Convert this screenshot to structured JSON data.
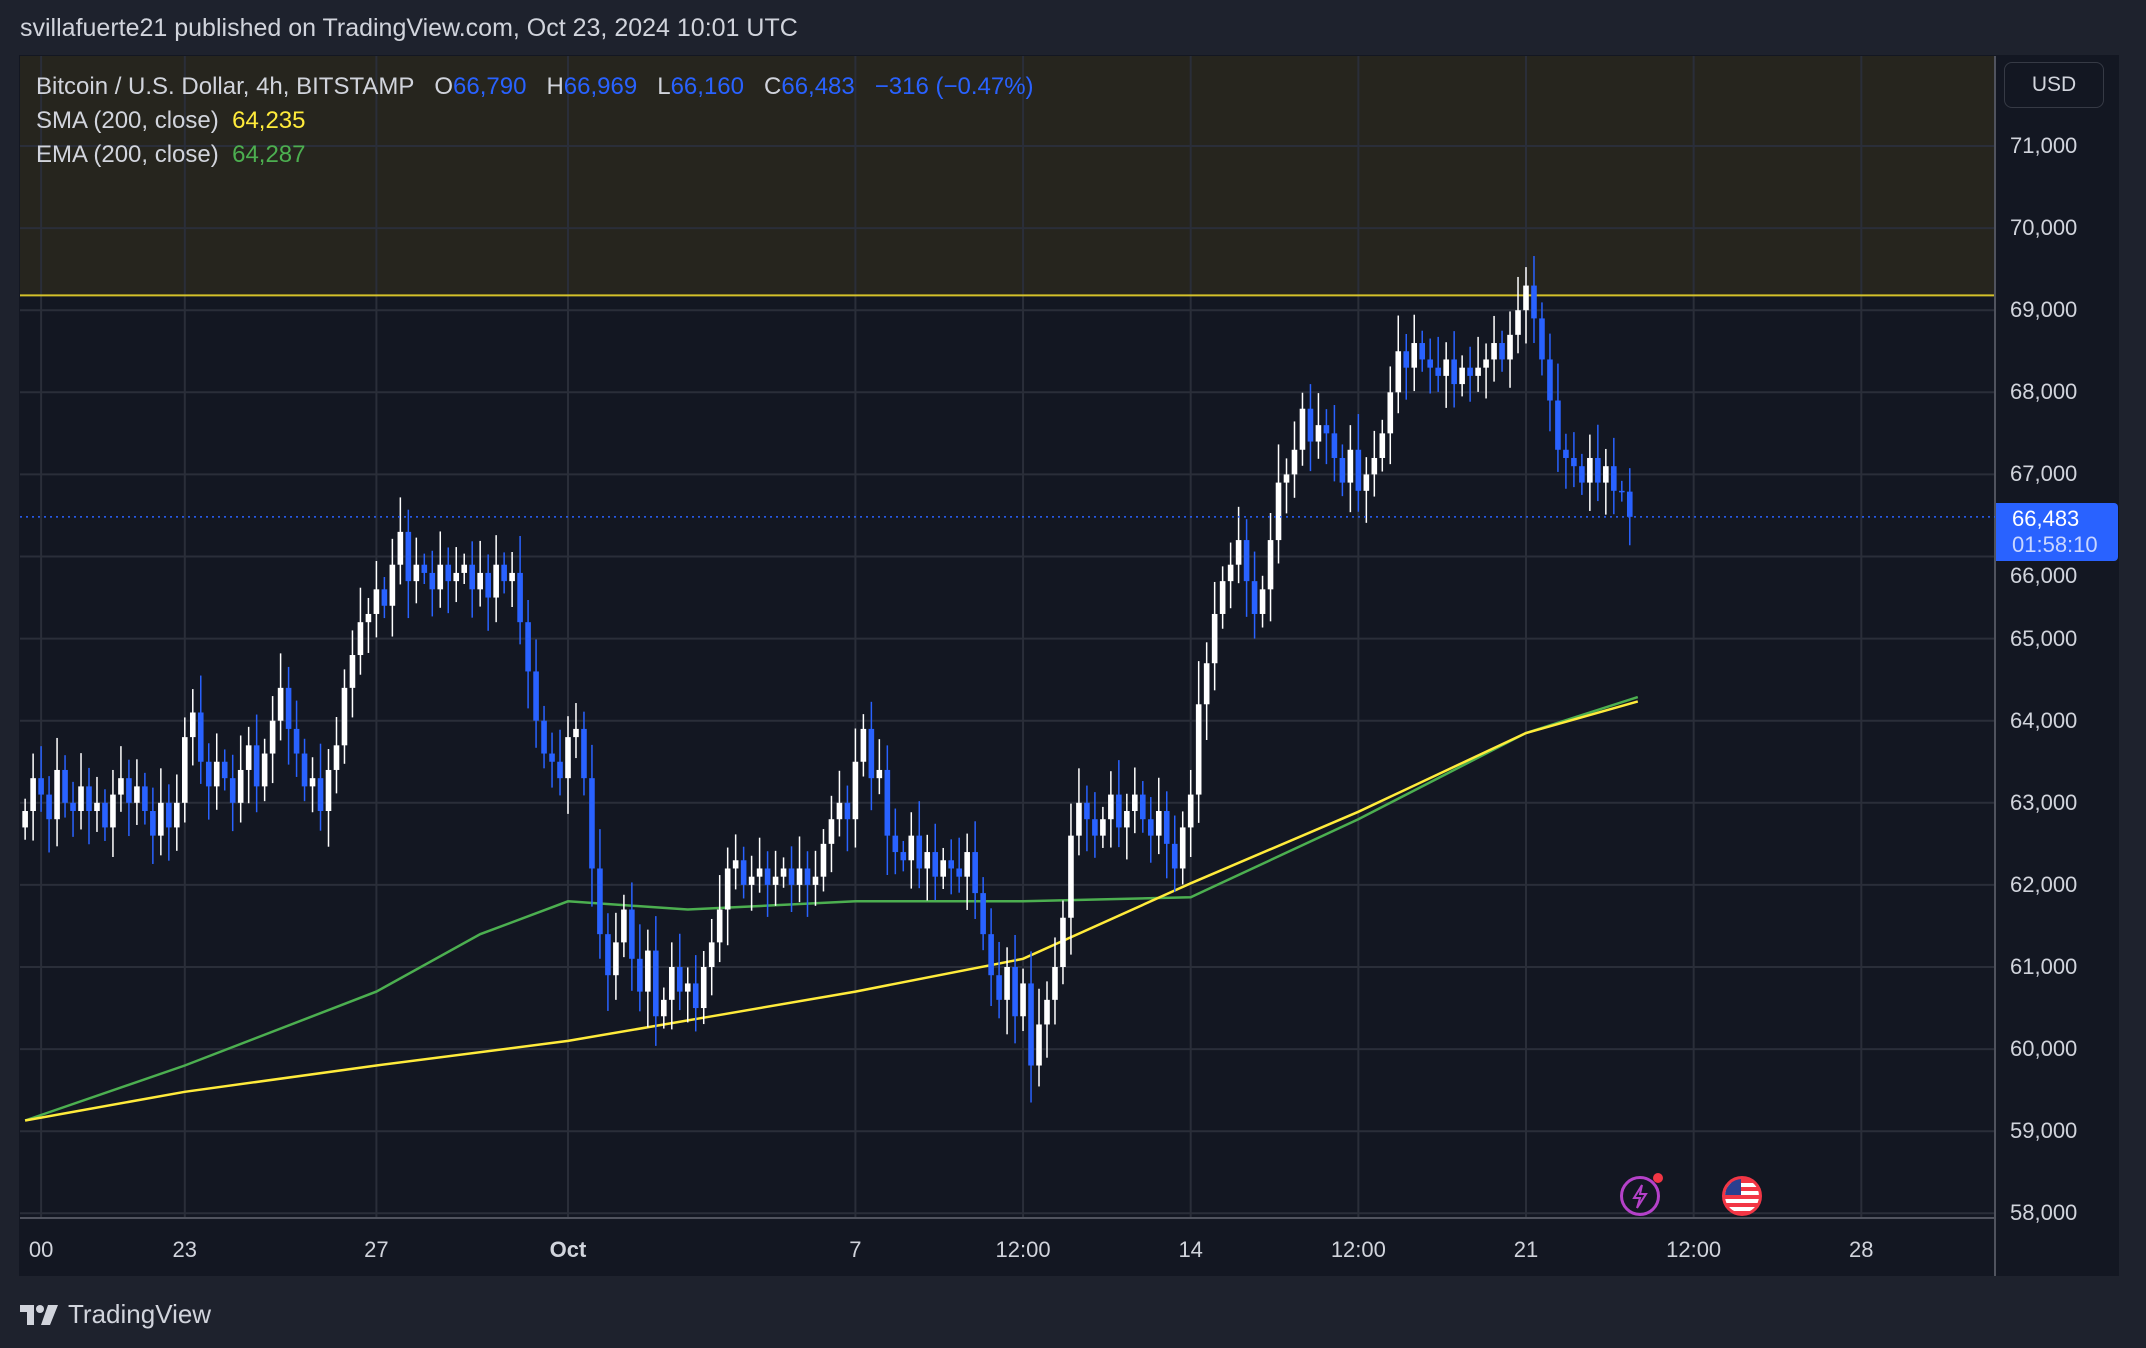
{
  "header": {
    "published_line": "svillafuerte21 published on TradingView.com, Oct 23, 2024 10:01 UTC"
  },
  "legend": {
    "symbol": "Bitcoin / U.S. Dollar, 4h, BITSTAMP",
    "o_label": "O",
    "o_value": "66,790",
    "h_label": "H",
    "h_value": "66,969",
    "l_label": "L",
    "l_value": "66,160",
    "c_label": "C",
    "c_value": "66,483",
    "change": "−316 (−0.47%)",
    "sma_label": "SMA (200, close)",
    "sma_value": "64,235",
    "ema_label": "EMA (200, close)",
    "ema_value": "64,287"
  },
  "price_axis": {
    "currency": "USD",
    "ticks": [
      "71,000",
      "70,000",
      "69,000",
      "68,000",
      "67,000",
      "66,000",
      "65,000",
      "64,000",
      "63,000",
      "62,000",
      "61,000",
      "60,000",
      "59,000",
      "58,000"
    ],
    "last_price": "66,483",
    "countdown": "01:58:10"
  },
  "time_axis": {
    "ticks": [
      {
        "label": "00",
        "t": "2024-09-20 00:00"
      },
      {
        "label": "23",
        "t": "2024-09-23 00:00"
      },
      {
        "label": "27",
        "t": "2024-09-27 00:00"
      },
      {
        "label": "Oct",
        "t": "2024-10-01 00:00"
      },
      {
        "label": "7",
        "t": "2024-10-07 00:00"
      },
      {
        "label": "12:00",
        "t": "2024-10-10 12:00"
      },
      {
        "label": "14",
        "t": "2024-10-14 00:00"
      },
      {
        "label": "12:00",
        "t": "2024-10-17 12:00"
      },
      {
        "label": "21",
        "t": "2024-10-21 00:00"
      },
      {
        "label": "12:00",
        "t": "2024-10-24 12:00"
      },
      {
        "label": "28",
        "t": "2024-10-28 00:00"
      }
    ]
  },
  "footer": {
    "brand": "TradingView"
  },
  "icons": {
    "events": "lightning-icon",
    "economic": "us-flag-icon"
  },
  "colors": {
    "up": "#ffffff",
    "down": "#2962ff",
    "sma": "#ffeb3b",
    "ema": "#4caf50",
    "resistance": "#d4c12a",
    "background": "#131722"
  },
  "chart_data": {
    "type": "candlestick",
    "interval": "4h",
    "start": "2024-09-19 16:00",
    "first_open": 62700,
    "close": [
      62900,
      63300,
      63100,
      62800,
      63400,
      63000,
      62900,
      63200,
      62900,
      63000,
      62700,
      63100,
      63300,
      63000,
      63200,
      62900,
      62600,
      63000,
      62700,
      63000,
      63800,
      64100,
      63500,
      63200,
      63500,
      63300,
      63000,
      63400,
      63700,
      63200,
      63600,
      64000,
      64400,
      63900,
      63600,
      63200,
      63300,
      62900,
      63400,
      63700,
      64400,
      64800,
      65200,
      65300,
      65600,
      65400,
      65900,
      66300,
      65700,
      65900,
      65800,
      65600,
      65900,
      65700,
      65800,
      65900,
      65600,
      65800,
      65500,
      65900,
      65700,
      65800,
      65200,
      64600,
      64000,
      63600,
      63500,
      63300,
      63800,
      63900,
      63300,
      62200,
      61400,
      60900,
      61300,
      61700,
      61100,
      60700,
      61200,
      60400,
      60600,
      61000,
      60700,
      60800,
      60500,
      61000,
      61300,
      61700,
      62200,
      62300,
      62000,
      62100,
      62200,
      62000,
      62100,
      62200,
      62000,
      62200,
      62000,
      62100,
      62500,
      62800,
      63000,
      62800,
      63500,
      63900,
      63300,
      63400,
      62600,
      62400,
      62300,
      62600,
      62200,
      62400,
      62100,
      62300,
      62200,
      62100,
      62400,
      61900,
      61400,
      60900,
      60600,
      61000,
      60400,
      60800,
      59800,
      60300,
      60600,
      61000,
      61600,
      62600,
      63000,
      62800,
      62600,
      62800,
      63100,
      62700,
      62900,
      63100,
      62800,
      62600,
      62900,
      62500,
      62200,
      62700,
      63100,
      64200,
      64700,
      65300,
      65700,
      65900,
      66200,
      65700,
      65300,
      65600,
      66200,
      66900,
      67000,
      67300,
      67800,
      67400,
      67600,
      67500,
      67200,
      66900,
      67300,
      66800,
      67000,
      67200,
      67500,
      68000,
      68500,
      68300,
      68600,
      68400,
      68300,
      68200,
      68400,
      68100,
      68300,
      68200,
      68300,
      68400,
      68600,
      68400,
      68700,
      69000,
      69300,
      68900,
      68400,
      67900,
      67300,
      67200,
      67100,
      66900,
      67200,
      66900,
      67100,
      66800,
      66790,
      66483
    ],
    "sma": [
      [
        "2024-09-19 16:00",
        59130
      ],
      [
        "2024-09-23 00:00",
        59480
      ],
      [
        "2024-09-27 00:00",
        59800
      ],
      [
        "2024-10-01 00:00",
        60100
      ],
      [
        "2024-10-04 00:00",
        60400
      ],
      [
        "2024-10-07 00:00",
        60700
      ],
      [
        "2024-10-10 12:00",
        61100
      ],
      [
        "2024-10-14 00:00",
        62020
      ],
      [
        "2024-10-17 12:00",
        62890
      ],
      [
        "2024-10-21 00:00",
        63850
      ],
      [
        "2024-10-23 08:00",
        64235
      ]
    ],
    "ema": [
      [
        "2024-09-19 16:00",
        59130
      ],
      [
        "2024-09-23 00:00",
        59800
      ],
      [
        "2024-09-27 00:00",
        60700
      ],
      [
        "2024-09-29 04:00",
        61400
      ],
      [
        "2024-10-01 00:00",
        61800
      ],
      [
        "2024-10-03 12:00",
        61700
      ],
      [
        "2024-10-07 00:00",
        61800
      ],
      [
        "2024-10-10 12:00",
        61800
      ],
      [
        "2024-10-14 00:00",
        61850
      ],
      [
        "2024-10-17 12:00",
        62800
      ],
      [
        "2024-10-21 00:00",
        63850
      ],
      [
        "2024-10-23 08:00",
        64287
      ]
    ],
    "resistance_level": 69180,
    "last_price": 66483,
    "ylim": [
      57900,
      71800
    ],
    "grid": true
  }
}
